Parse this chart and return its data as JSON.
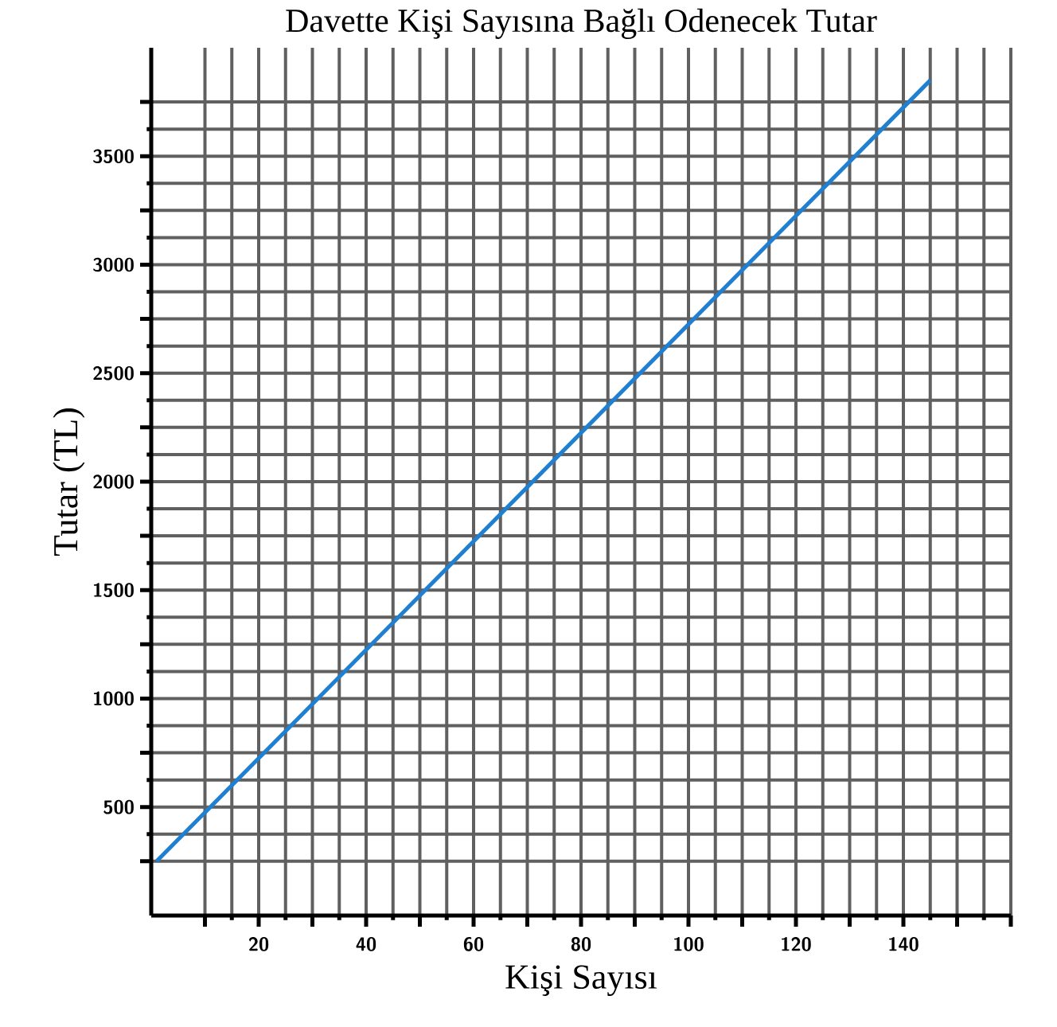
{
  "chart_data": {
    "type": "line",
    "title": "Davette Kişi Sayısına Bağlı Odenecek Tutar",
    "xlabel": "Kişi Sayısı",
    "ylabel": "Tutar (TL)",
    "x": [
      1,
      145
    ],
    "series": [
      {
        "color": "#1f7fd0",
        "values": [
          250,
          3850
        ]
      }
    ],
    "xlim": [
      0,
      160
    ],
    "ylim": [
      0,
      4000
    ],
    "xticks": [
      {
        "value": 10,
        "label": null
      },
      20,
      {
        "value": 30,
        "label": null
      },
      40,
      {
        "value": 50,
        "label": null
      },
      60,
      {
        "value": 70,
        "label": null
      },
      80,
      {
        "value": 90,
        "label": null
      },
      100,
      {
        "value": 110,
        "label": null
      },
      120,
      {
        "value": 130,
        "label": null
      },
      140,
      {
        "value": 150,
        "label": null
      },
      {
        "value": 160,
        "label": null
      }
    ],
    "yticks": [
      {
        "value": 250,
        "label": null
      },
      500,
      {
        "value": 750,
        "label": null
      },
      1000,
      {
        "value": 1250,
        "label": null
      },
      1500,
      {
        "value": 1750,
        "label": null
      },
      2000,
      {
        "value": 2250,
        "label": null
      },
      2500,
      {
        "value": 2750,
        "label": null
      },
      3000,
      {
        "value": 3250,
        "label": null
      },
      3500,
      {
        "value": 3750,
        "label": null
      }
    ],
    "grid": true,
    "marker": "none",
    "line_style": "solid"
  }
}
